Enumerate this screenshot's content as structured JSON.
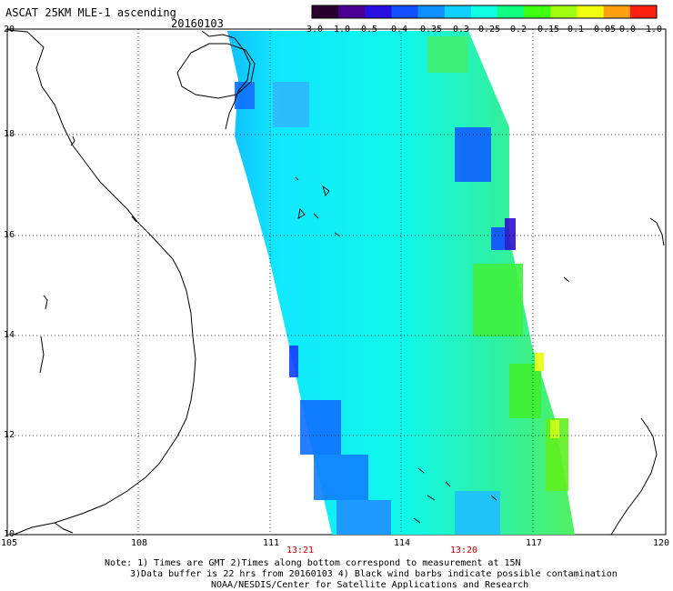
{
  "header": {
    "title": "ASCAT 25KM MLE-1 ascending",
    "date": "20160103"
  },
  "colorbar": {
    "labels": [
      "-3.0",
      "-1.0",
      "-0.5",
      "-0.4",
      "-0.35",
      "-0.3",
      "-0.25",
      "-0.2",
      "-0.15",
      "-0.1",
      "-0.05",
      "0.0",
      "1.0"
    ],
    "colors": [
      "#2a0030",
      "#4a0090",
      "#2a10e0",
      "#1050ff",
      "#1090ff",
      "#10d0ff",
      "#10ffe0",
      "#10ff80",
      "#40ff10",
      "#a0ff10",
      "#f0ff10",
      "#ffa010",
      "#ff2010"
    ]
  },
  "axes": {
    "lon_labels": [
      "105",
      "108",
      "111",
      "114",
      "117",
      "120"
    ],
    "lat_labels": [
      "20",
      "18",
      "16",
      "14",
      "12",
      "10"
    ],
    "times": [
      "13:21",
      "13:20"
    ]
  },
  "notes": {
    "line1": "Note: 1) Times are GMT 2)Times along bottom correspond to measurement at 15N",
    "line2": "3)Data buffer is 22 hrs from 20160103 4) Black wind barbs indicate possible contamination",
    "line3": "NOAA/NESDIS/Center for Satellite Applications and Research"
  }
}
